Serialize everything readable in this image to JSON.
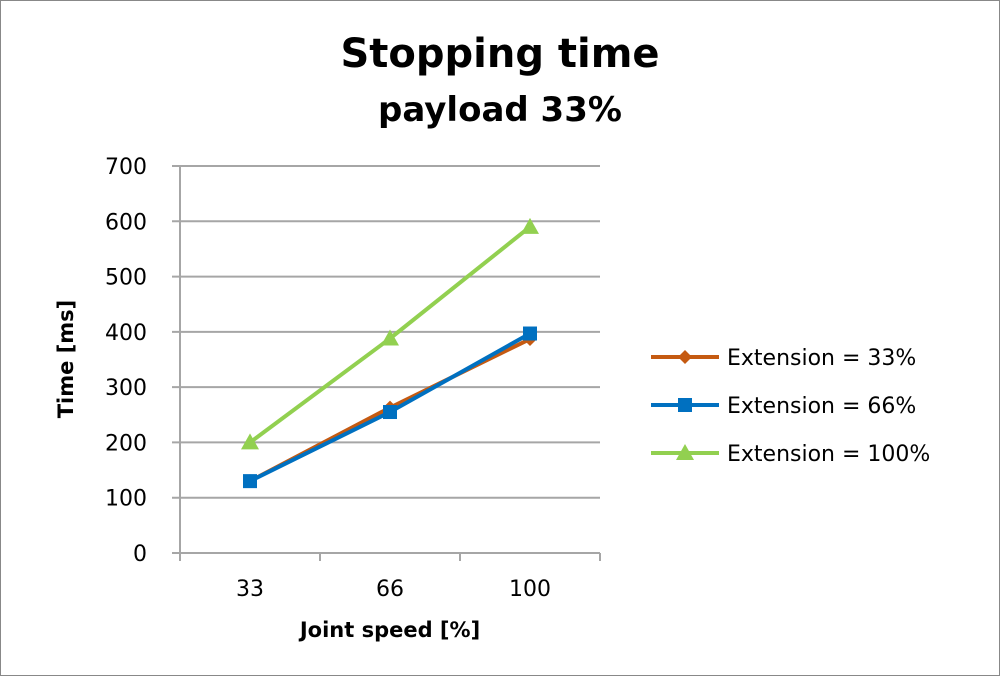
{
  "chart_data": {
    "type": "line",
    "title": "Stopping time",
    "subtitle": "payload 33%",
    "xlabel": "Joint speed [%]",
    "ylabel": "Time [ms]",
    "categories": [
      "33",
      "66",
      "100"
    ],
    "ylim": [
      0,
      700
    ],
    "yticks": [
      "0",
      "100",
      "200",
      "300",
      "400",
      "500",
      "600",
      "700"
    ],
    "grid": true,
    "legend_position": "right",
    "series": [
      {
        "name": "Extension = 33%",
        "values": [
          130,
          263,
          387
        ],
        "color": "#C55A11",
        "marker": "diamond"
      },
      {
        "name": "Extension = 66%",
        "values": [
          130,
          255,
          397
        ],
        "color": "#0070C0",
        "marker": "square"
      },
      {
        "name": "Extension = 100%",
        "values": [
          200,
          388,
          590
        ],
        "color": "#92D050",
        "marker": "triangle"
      }
    ]
  }
}
